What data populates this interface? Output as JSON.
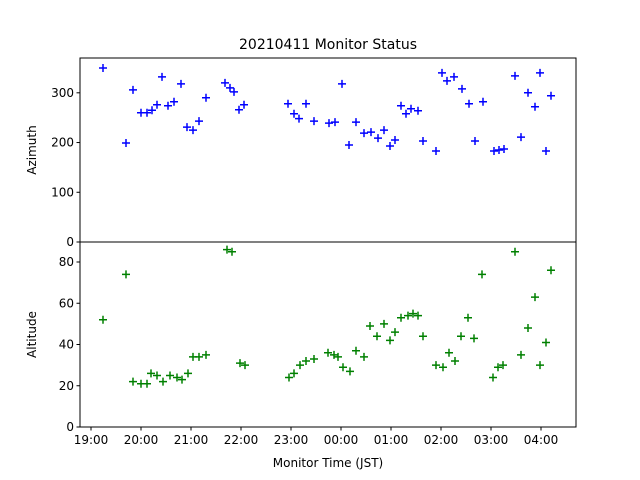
{
  "chart_data": [
    {
      "type": "scatter",
      "title": "20210411 Monitor Status",
      "y_label": "Azimuth",
      "color": "blue",
      "marker": "+",
      "xlim": [
        18.78,
        28.7
      ],
      "ylim": [
        0,
        370
      ],
      "yticks": [
        0,
        100,
        200,
        300
      ],
      "x": [
        19.24,
        19.7,
        19.84,
        20.0,
        20.12,
        20.22,
        20.32,
        20.42,
        20.54,
        20.66,
        20.8,
        20.92,
        21.04,
        21.16,
        21.3,
        21.68,
        21.78,
        21.86,
        21.96,
        22.06,
        22.94,
        23.06,
        23.16,
        23.3,
        23.46,
        23.76,
        23.88,
        24.02,
        24.16,
        24.3,
        24.46,
        24.6,
        24.74,
        24.86,
        24.98,
        25.08,
        25.2,
        25.3,
        25.4,
        25.54,
        25.64,
        25.9,
        26.02,
        26.12,
        26.26,
        26.42,
        26.56,
        26.68,
        26.84,
        27.06,
        27.16,
        27.26,
        27.48,
        27.6,
        27.74,
        27.88,
        27.98,
        28.1,
        28.2
      ],
      "values": [
        350,
        199,
        306,
        260,
        260,
        265,
        276,
        332,
        274,
        282,
        318,
        231,
        225,
        243,
        290,
        320,
        310,
        302,
        266,
        276,
        278,
        258,
        248,
        278,
        243,
        239,
        241,
        318,
        195,
        241,
        219,
        221,
        209,
        225,
        193,
        205,
        274,
        258,
        268,
        264,
        203,
        183,
        340,
        324,
        332,
        308,
        278,
        203,
        282,
        183,
        185,
        187,
        334,
        211,
        300,
        272,
        340,
        183,
        294
      ]
    },
    {
      "type": "scatter",
      "x_label": "Monitor Time (JST)",
      "y_label": "Altitude",
      "color": "green",
      "marker": "+",
      "xlim": [
        18.78,
        28.7
      ],
      "ylim": [
        0,
        89.7
      ],
      "yticks": [
        0,
        20,
        40,
        60,
        80
      ],
      "xticks": [
        {
          "value": 19,
          "label": "19:00"
        },
        {
          "value": 20,
          "label": "20:00"
        },
        {
          "value": 21,
          "label": "21:00"
        },
        {
          "value": 22,
          "label": "22:00"
        },
        {
          "value": 23,
          "label": "23:00"
        },
        {
          "value": 24,
          "label": "00:00"
        },
        {
          "value": 25,
          "label": "01:00"
        },
        {
          "value": 26,
          "label": "02:00"
        },
        {
          "value": 27,
          "label": "03:00"
        },
        {
          "value": 28,
          "label": "04:00"
        }
      ],
      "x": [
        19.24,
        19.7,
        19.84,
        20.0,
        20.12,
        20.2,
        20.32,
        20.44,
        20.58,
        20.72,
        20.82,
        20.94,
        21.04,
        21.16,
        21.3,
        21.72,
        21.82,
        21.98,
        22.08,
        22.96,
        23.06,
        23.18,
        23.3,
        23.46,
        23.74,
        23.86,
        23.94,
        24.04,
        24.18,
        24.3,
        24.46,
        24.58,
        24.72,
        24.86,
        24.98,
        25.08,
        25.2,
        25.34,
        25.44,
        25.54,
        25.64,
        25.9,
        26.04,
        26.16,
        26.28,
        26.4,
        26.54,
        26.66,
        26.82,
        27.04,
        27.14,
        27.24,
        27.48,
        27.6,
        27.74,
        27.88,
        27.98,
        28.1,
        28.2
      ],
      "values": [
        52,
        74,
        22,
        21,
        21,
        26,
        25,
        22,
        25,
        24,
        23,
        26,
        34,
        34,
        35,
        86,
        85,
        31,
        30,
        24,
        26,
        30,
        32,
        33,
        36,
        35,
        34,
        29,
        27,
        37,
        34,
        49,
        44,
        50,
        42,
        46,
        53,
        54,
        55,
        54,
        44,
        30,
        29,
        36,
        32,
        44,
        53,
        43,
        74,
        24,
        29,
        30,
        85,
        35,
        48,
        63,
        30,
        41,
        76
      ]
    }
  ]
}
